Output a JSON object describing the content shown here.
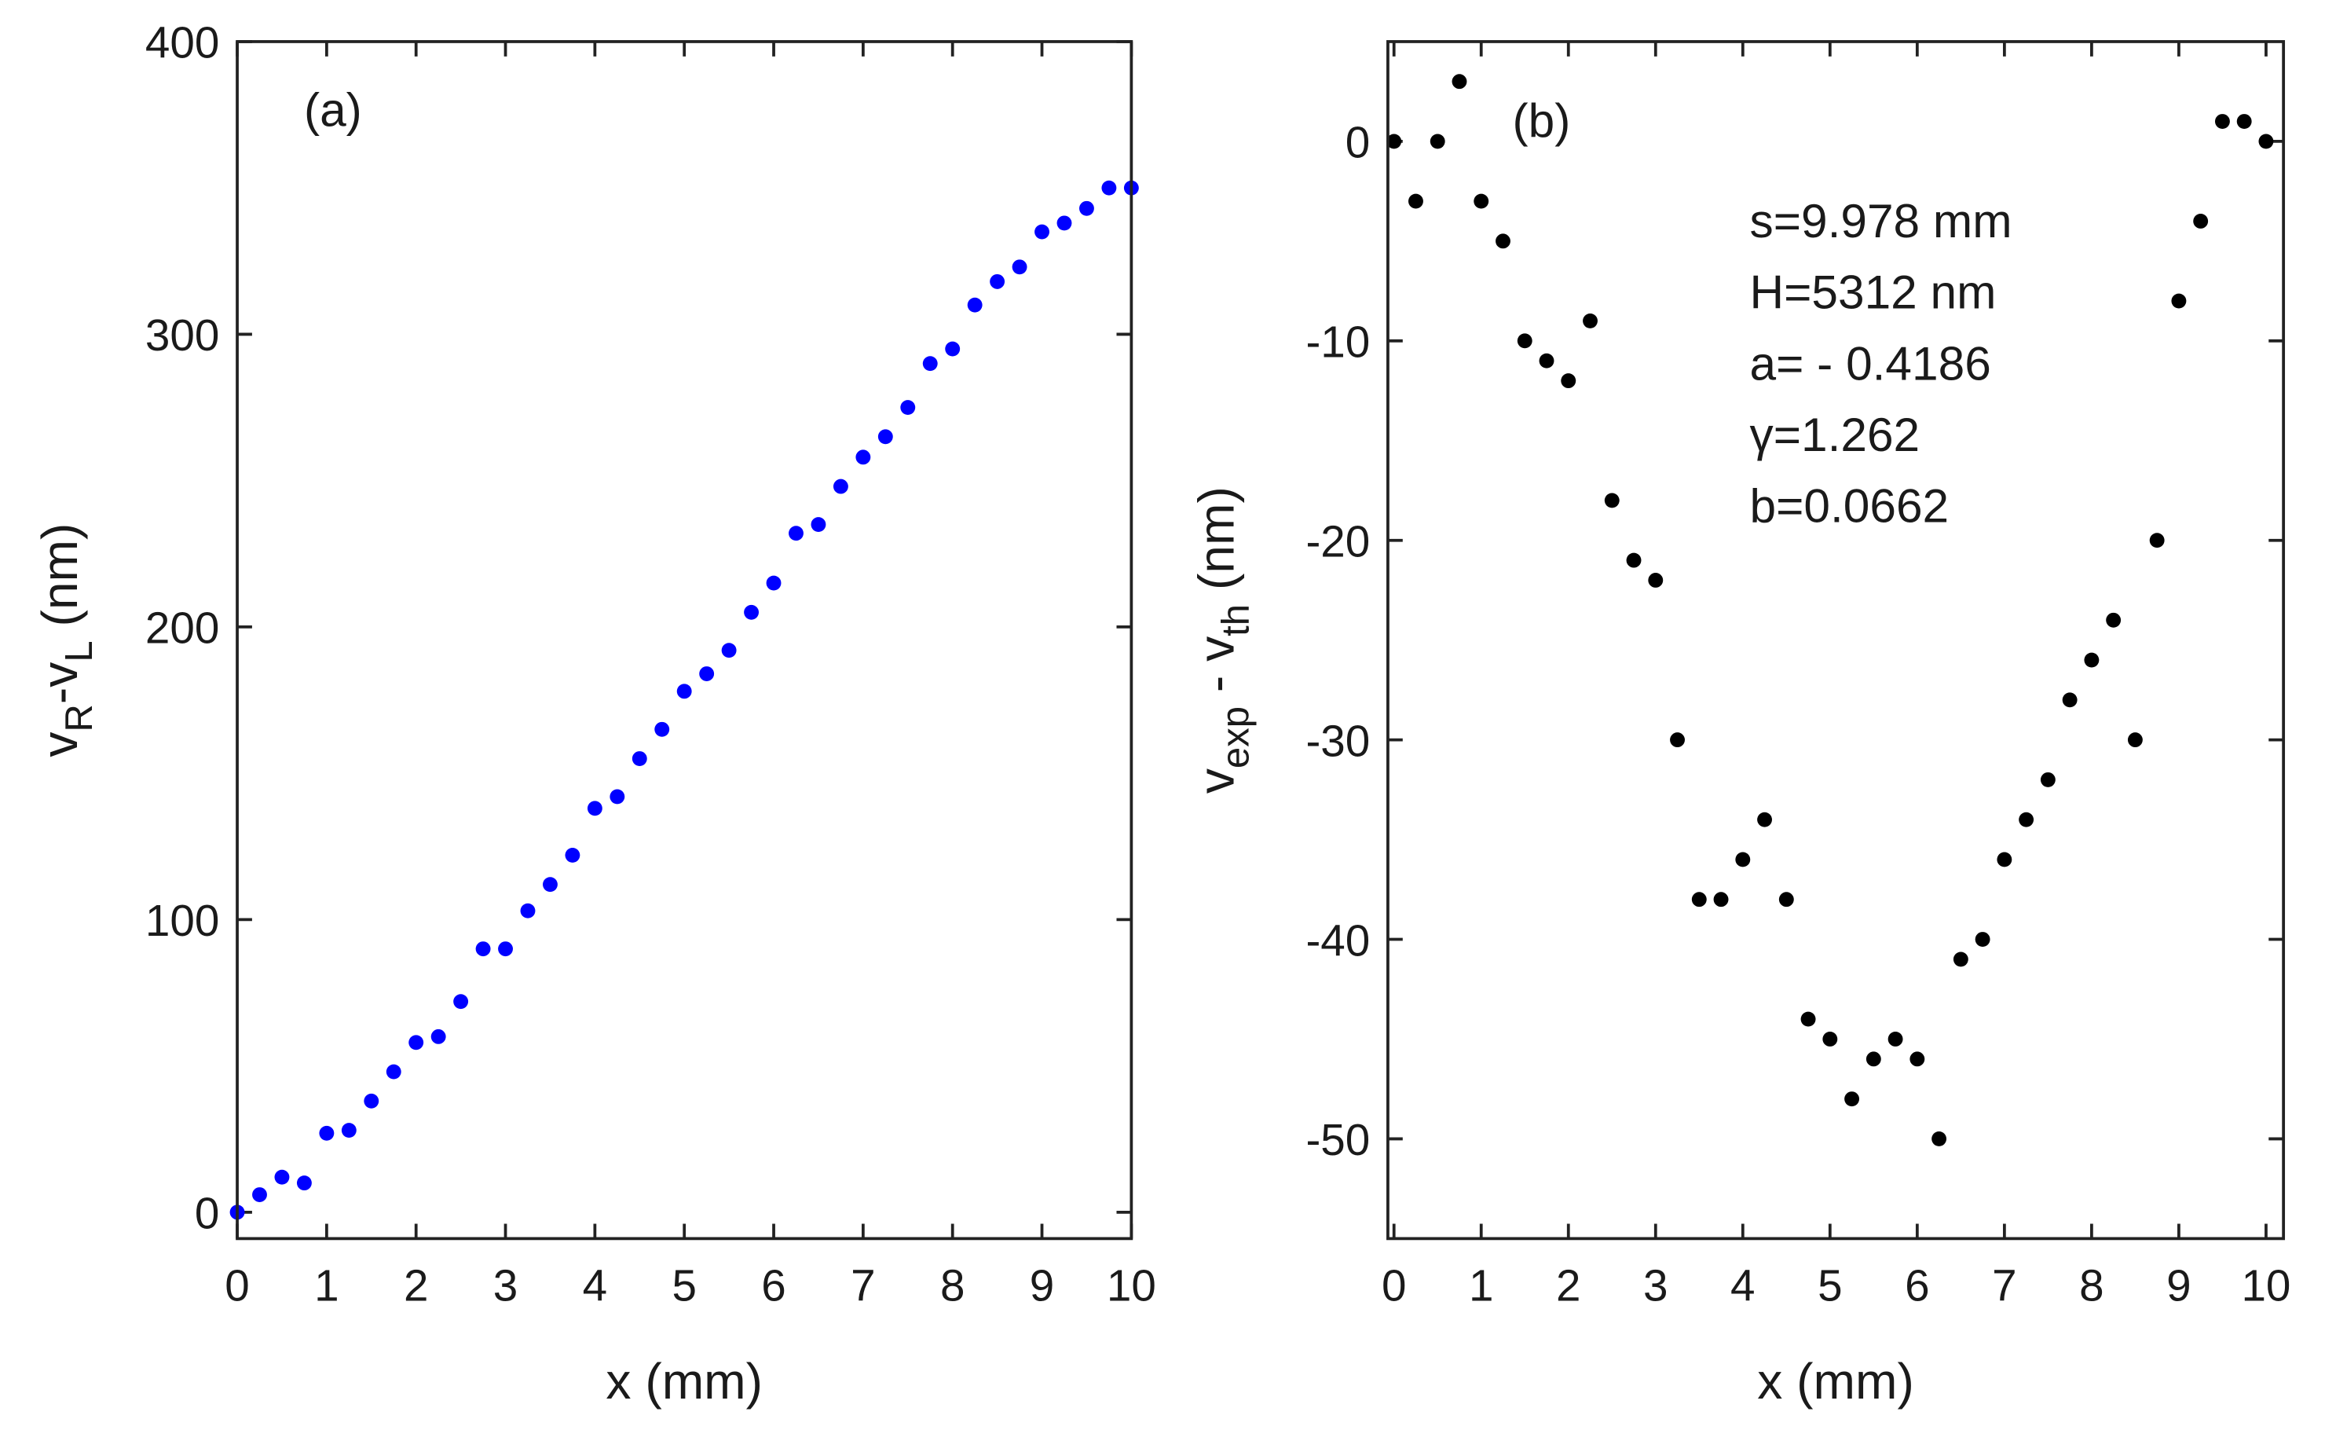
{
  "chart_data": [
    {
      "type": "scatter",
      "annotation": "(a)",
      "xlabel": "x (mm)",
      "ylabel_parts": [
        {
          "text": "v"
        },
        {
          "text": "R",
          "sub": true
        },
        {
          "text": "-v"
        },
        {
          "text": "L",
          "sub": true
        },
        {
          "text": " (nm)"
        }
      ],
      "xlim": [
        0,
        10
      ],
      "ylim": [
        -9,
        400
      ],
      "xticks": [
        0,
        1,
        2,
        3,
        4,
        5,
        6,
        7,
        8,
        9,
        10
      ],
      "yticks": [
        0,
        100,
        200,
        300,
        400
      ],
      "series": [
        {
          "color": "#0000ff",
          "x": [
            0,
            0.25,
            0.5,
            0.75,
            1,
            1.25,
            1.5,
            1.75,
            2,
            2.25,
            2.5,
            2.75,
            3,
            3.25,
            3.5,
            3.75,
            4,
            4.25,
            4.5,
            4.75,
            5,
            5.25,
            5.5,
            5.75,
            6,
            6.25,
            6.5,
            6.75,
            7,
            7.25,
            7.5,
            7.75,
            8,
            8.25,
            8.5,
            8.75,
            9,
            9.25,
            9.5,
            9.75,
            10
          ],
          "values": [
            0,
            6,
            12,
            10,
            27,
            28,
            38,
            48,
            58,
            60,
            72,
            90,
            90,
            103,
            112,
            122,
            138,
            142,
            155,
            165,
            178,
            184,
            192,
            205,
            215,
            232,
            235,
            248,
            258,
            265,
            275,
            290,
            295,
            310,
            318,
            323,
            335,
            338,
            343,
            350,
            350
          ]
        }
      ]
    },
    {
      "type": "scatter",
      "annotation": "(b)",
      "annotation_lines": [
        "s=9.978 mm",
        "H=5312 nm",
        "a= - 0.4186",
        "γ=1.262",
        "b=0.0662"
      ],
      "xlabel": "x (mm)",
      "ylabel_parts": [
        {
          "text": "v"
        },
        {
          "text": "exp",
          "sub": true
        },
        {
          "text": " - v"
        },
        {
          "text": "th",
          "sub": true
        },
        {
          "text": " (nm)"
        }
      ],
      "xlim": [
        -0.07,
        10.2
      ],
      "ylim": [
        -55,
        5
      ],
      "xticks": [
        0,
        1,
        2,
        3,
        4,
        5,
        6,
        7,
        8,
        9,
        10
      ],
      "yticks": [
        -50,
        -40,
        -30,
        -20,
        -10,
        0
      ],
      "series": [
        {
          "color": "#000000",
          "x": [
            0,
            0.25,
            0.5,
            0.75,
            1,
            1.25,
            1.5,
            1.75,
            2,
            2.25,
            2.5,
            2.75,
            3,
            3.25,
            3.5,
            3.75,
            4,
            4.25,
            4.5,
            4.75,
            5,
            5.25,
            5.5,
            5.75,
            6,
            6.25,
            6.5,
            6.75,
            7,
            7.25,
            7.5,
            7.75,
            8,
            8.25,
            8.5,
            8.75,
            9,
            9.25,
            9.5,
            9.75,
            10
          ],
          "values": [
            0,
            -3,
            0,
            3,
            -3,
            -5,
            -10,
            -11,
            -12,
            -9,
            -18,
            -21,
            -22,
            -30,
            -38,
            -38,
            -36,
            -34,
            -38,
            -44,
            -45,
            -48,
            -46,
            -45,
            -46,
            -50,
            -41,
            -40,
            -36,
            -34,
            -32,
            -28,
            -26,
            -24,
            -30,
            -20,
            -8,
            -4,
            1,
            1,
            0
          ]
        }
      ]
    }
  ]
}
